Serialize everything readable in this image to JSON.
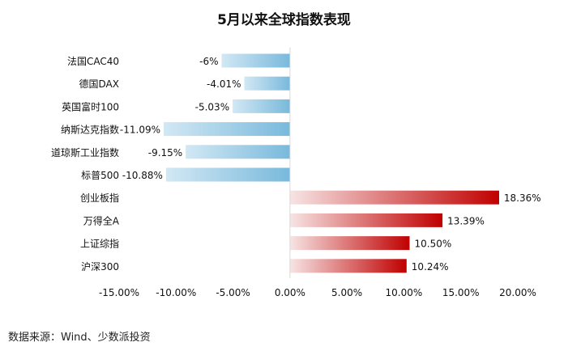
{
  "chart_data": {
    "type": "bar",
    "orientation": "horizontal",
    "title": "5月以来全球指数表现",
    "categories": [
      "法国CAC40",
      "德国DAX",
      "英国富时100",
      "纳斯达克指数",
      "道琼斯工业指数",
      "标普500",
      "创业板指",
      "万得全A",
      "上证综指",
      "沪深300"
    ],
    "values": [
      -6,
      -4.01,
      -5.03,
      -11.09,
      -9.15,
      -10.88,
      18.36,
      13.39,
      10.5,
      10.24
    ],
    "value_labels": [
      "-6%",
      "-4.01%",
      "-5.03%",
      "-11.09%",
      "-9.15%",
      "-10.88%",
      "18.36%",
      "13.39%",
      "10.50%",
      "10.24%"
    ],
    "xlim": [
      -15,
      20
    ],
    "xticks": [
      -15,
      -10,
      -5,
      0,
      5,
      10,
      15,
      20
    ],
    "xtick_labels": [
      "-15.00%",
      "-10.00%",
      "-5.00%",
      "0.00%",
      "5.00%",
      "10.00%",
      "15.00%",
      "20.00%"
    ],
    "xlabel": "",
    "ylabel": "",
    "grid": false,
    "legend": "none",
    "colors": {
      "negative_light": "#d2e8f4",
      "negative_dark": "#79b9dc",
      "positive_light": "#f7e4e4",
      "positive_dark": "#c00000",
      "axis": "#d9d9d9"
    }
  },
  "source": "数据来源：Wind、少数派投资"
}
